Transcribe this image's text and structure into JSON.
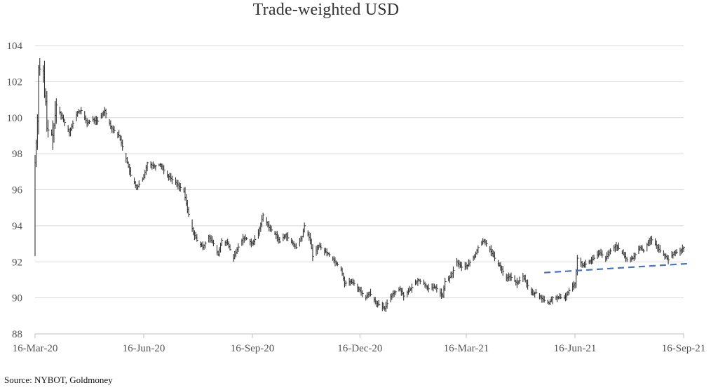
{
  "title": "Trade-weighted USD",
  "source": "Source: NYBOT, Goldmoney",
  "chart_data": {
    "type": "ohlc",
    "title": "Trade-weighted USD",
    "ylim": [
      88,
      104
    ],
    "yticks": [
      88,
      90,
      92,
      94,
      96,
      98,
      100,
      102,
      104
    ],
    "xlim": [
      "2020-03-16",
      "2021-09-16"
    ],
    "xticks": [
      {
        "date": "2020-03-16",
        "label": "16-Mar-20"
      },
      {
        "date": "2020-06-16",
        "label": "16-Jun-20"
      },
      {
        "date": "2020-09-16",
        "label": "16-Sep-20"
      },
      {
        "date": "2020-12-16",
        "label": "16-Dec-20"
      },
      {
        "date": "2021-03-16",
        "label": "16-Mar-21"
      },
      {
        "date": "2021-06-16",
        "label": "16-Jun-21"
      },
      {
        "date": "2021-09-16",
        "label": "16-Sep-21"
      }
    ],
    "grid": "horizontal",
    "colors": {
      "bars": "#333333",
      "grid": "#d9d9d9",
      "trendline": "#4472c4",
      "axis": "#bfbfbf"
    },
    "series": [
      {
        "type": "price-path",
        "points": [
          [
            "2020-03-16",
            97.5
          ],
          [
            "2020-03-18",
            99.8
          ],
          [
            "2020-03-19",
            102.8
          ],
          [
            "2020-03-20",
            102.7
          ],
          [
            "2020-03-23",
            102.6
          ],
          [
            "2020-03-24",
            101.2
          ],
          [
            "2020-03-25",
            100.9
          ],
          [
            "2020-03-26",
            99.4
          ],
          [
            "2020-03-31",
            99.0
          ],
          [
            "2020-04-03",
            100.7
          ],
          [
            "2020-04-08",
            100.0
          ],
          [
            "2020-04-14",
            99.2
          ],
          [
            "2020-04-21",
            100.3
          ],
          [
            "2020-04-24",
            100.4
          ],
          [
            "2020-04-29",
            99.7
          ],
          [
            "2020-05-04",
            99.9
          ],
          [
            "2020-05-08",
            99.8
          ],
          [
            "2020-05-14",
            100.4
          ],
          [
            "2020-05-19",
            99.5
          ],
          [
            "2020-05-26",
            99.0
          ],
          [
            "2020-05-29",
            98.4
          ],
          [
            "2020-06-02",
            97.5
          ],
          [
            "2020-06-05",
            96.8
          ],
          [
            "2020-06-10",
            96.1
          ],
          [
            "2020-06-16",
            96.7
          ],
          [
            "2020-06-19",
            97.5
          ],
          [
            "2020-06-25",
            97.3
          ],
          [
            "2020-06-30",
            97.4
          ],
          [
            "2020-07-06",
            96.8
          ],
          [
            "2020-07-13",
            96.4
          ],
          [
            "2020-07-20",
            95.9
          ],
          [
            "2020-07-23",
            94.9
          ],
          [
            "2020-07-28",
            93.6
          ],
          [
            "2020-07-31",
            93.2
          ],
          [
            "2020-08-05",
            92.8
          ],
          [
            "2020-08-10",
            93.4
          ],
          [
            "2020-08-14",
            93.0
          ],
          [
            "2020-08-18",
            92.4
          ],
          [
            "2020-08-21",
            93.2
          ],
          [
            "2020-08-26",
            93.0
          ],
          [
            "2020-08-31",
            92.2
          ],
          [
            "2020-09-03",
            92.7
          ],
          [
            "2020-09-08",
            93.3
          ],
          [
            "2020-09-11",
            93.3
          ],
          [
            "2020-09-16",
            93.0
          ],
          [
            "2020-09-21",
            93.6
          ],
          [
            "2020-09-25",
            94.6
          ],
          [
            "2020-09-30",
            93.9
          ],
          [
            "2020-10-06",
            93.5
          ],
          [
            "2020-10-09",
            93.1
          ],
          [
            "2020-10-14",
            93.5
          ],
          [
            "2020-10-20",
            93.0
          ],
          [
            "2020-10-23",
            92.8
          ],
          [
            "2020-10-28",
            93.4
          ],
          [
            "2020-10-30",
            94.0
          ],
          [
            "2020-11-04",
            93.2
          ],
          [
            "2020-11-06",
            92.3
          ],
          [
            "2020-11-11",
            92.9
          ],
          [
            "2020-11-16",
            92.6
          ],
          [
            "2020-11-20",
            92.4
          ],
          [
            "2020-11-25",
            92.0
          ],
          [
            "2020-11-30",
            91.6
          ],
          [
            "2020-12-03",
            90.8
          ],
          [
            "2020-12-08",
            90.9
          ],
          [
            "2020-12-11",
            90.8
          ],
          [
            "2020-12-16",
            90.4
          ],
          [
            "2020-12-21",
            90.0
          ],
          [
            "2020-12-24",
            90.3
          ],
          [
            "2020-12-30",
            89.7
          ],
          [
            "2021-01-06",
            89.4
          ],
          [
            "2021-01-11",
            90.1
          ],
          [
            "2021-01-14",
            90.3
          ],
          [
            "2021-01-19",
            90.5
          ],
          [
            "2021-01-22",
            90.1
          ],
          [
            "2021-01-28",
            90.5
          ],
          [
            "2021-02-03",
            91.0
          ],
          [
            "2021-02-08",
            90.8
          ],
          [
            "2021-02-12",
            90.5
          ],
          [
            "2021-02-18",
            90.6
          ],
          [
            "2021-02-24",
            90.1
          ],
          [
            "2021-02-26",
            90.9
          ],
          [
            "2021-03-03",
            91.2
          ],
          [
            "2021-03-08",
            92.0
          ],
          [
            "2021-03-12",
            91.7
          ],
          [
            "2021-03-17",
            91.8
          ],
          [
            "2021-03-23",
            92.3
          ],
          [
            "2021-03-26",
            92.8
          ],
          [
            "2021-03-31",
            93.2
          ],
          [
            "2021-04-05",
            92.7
          ],
          [
            "2021-04-09",
            92.2
          ],
          [
            "2021-04-14",
            91.7
          ],
          [
            "2021-04-19",
            91.1
          ],
          [
            "2021-04-22",
            91.2
          ],
          [
            "2021-04-28",
            90.8
          ],
          [
            "2021-05-03",
            91.2
          ],
          [
            "2021-05-06",
            90.8
          ],
          [
            "2021-05-11",
            90.2
          ],
          [
            "2021-05-14",
            90.3
          ],
          [
            "2021-05-20",
            89.9
          ],
          [
            "2021-05-25",
            89.7
          ],
          [
            "2021-05-28",
            90.0
          ],
          [
            "2021-06-02",
            90.0
          ],
          [
            "2021-06-07",
            90.0
          ],
          [
            "2021-06-11",
            90.4
          ],
          [
            "2021-06-16",
            90.8
          ],
          [
            "2021-06-18",
            92.2
          ],
          [
            "2021-06-23",
            91.8
          ],
          [
            "2021-06-28",
            92.0
          ],
          [
            "2021-07-02",
            92.2
          ],
          [
            "2021-07-07",
            92.5
          ],
          [
            "2021-07-12",
            92.2
          ],
          [
            "2021-07-16",
            92.6
          ],
          [
            "2021-07-21",
            92.9
          ],
          [
            "2021-07-27",
            92.4
          ],
          [
            "2021-07-30",
            92.1
          ],
          [
            "2021-08-04",
            92.2
          ],
          [
            "2021-08-10",
            92.8
          ],
          [
            "2021-08-13",
            92.6
          ],
          [
            "2021-08-19",
            93.3
          ],
          [
            "2021-08-24",
            92.9
          ],
          [
            "2021-08-27",
            92.6
          ],
          [
            "2021-09-01",
            92.3
          ],
          [
            "2021-09-03",
            92.1
          ],
          [
            "2021-09-08",
            92.5
          ],
          [
            "2021-09-13",
            92.6
          ],
          [
            "2021-09-16",
            92.8
          ]
        ]
      }
    ],
    "trendline": {
      "start": [
        "2021-05-21",
        91.4
      ],
      "end": [
        "2021-09-20",
        91.9
      ],
      "style": "dashed"
    }
  }
}
